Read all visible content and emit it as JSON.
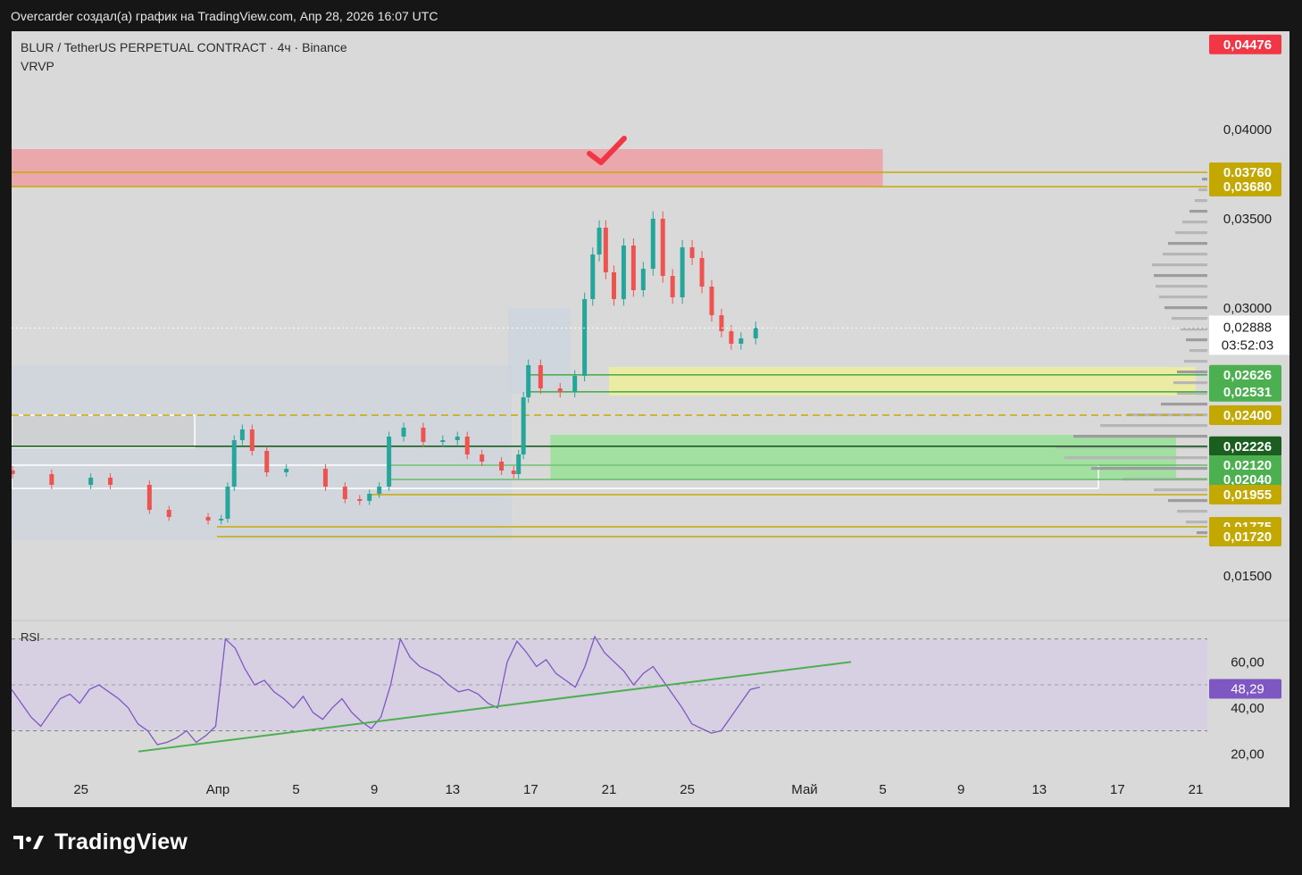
{
  "header": {
    "caption": "Overcarder создал(а) график на TradingView.com, Апр 28, 2026 16:07 UTC"
  },
  "legend": {
    "symbol": "BLUR / TetherUS PERPETUAL CONTRACT · 4ч · Binance",
    "indicator": "VRVP",
    "rsi": "RSI"
  },
  "footer": {
    "brand": "TradingView"
  },
  "colors": {
    "background": "#d9d9d9",
    "up": "#26a69a",
    "down": "#ef5350",
    "yellow_level": "#c8a800",
    "resistance_zone": "#eba5aa",
    "support_zone": "#9ee09e",
    "demand_zone": "#ececa0",
    "rsi_line": "#7e57c2",
    "trend_line": "#4caf50",
    "check_mark": "#f23645"
  },
  "chart_data": [
    {
      "type": "candlestick",
      "title": "BLUR / TetherUS PERPETUAL CONTRACT · 4ч · Binance",
      "timeframe": "4ч",
      "last_price": "0,02888",
      "countdown": "03:52:03",
      "ylim": [
        0.0125,
        0.0455
      ],
      "price_axis_ticks": [
        "0,04000",
        "0,03500",
        "0,03000",
        "0,01500"
      ],
      "price_labels": [
        {
          "text": "0,04476",
          "value": 0.04476,
          "kind": "red"
        },
        {
          "text": "0,03760",
          "value": 0.0376,
          "kind": "yellow"
        },
        {
          "text": "0,03680",
          "value": 0.0368,
          "kind": "yellow"
        },
        {
          "text": "0,02626",
          "value": 0.02626,
          "kind": "green"
        },
        {
          "text": "0,02531",
          "value": 0.02531,
          "kind": "green"
        },
        {
          "text": "0,02400",
          "value": 0.024,
          "kind": "yellow"
        },
        {
          "text": "0,02226",
          "value": 0.02226,
          "kind": "dark"
        },
        {
          "text": "0,02120",
          "value": 0.0212,
          "kind": "green"
        },
        {
          "text": "0,02040",
          "value": 0.0204,
          "kind": "green"
        },
        {
          "text": "0,01955",
          "value": 0.01955,
          "kind": "yellow"
        },
        {
          "text": "0,01775",
          "value": 0.01775,
          "kind": "yellow"
        },
        {
          "text": "0,01720",
          "value": 0.0172,
          "kind": "yellow"
        }
      ],
      "levels": [
        0.0376,
        0.0368,
        0.02626,
        0.02531,
        0.024,
        0.02226,
        0.0212,
        0.0204,
        0.01955,
        0.01775,
        0.0172
      ],
      "zones": [
        {
          "name": "resistance",
          "from": "Mar 21",
          "to": "May 5",
          "low": 0.0368,
          "high": 0.0389
        },
        {
          "name": "demand",
          "from": "Apr 21",
          "to": "May 21",
          "low": 0.0251,
          "high": 0.0267
        },
        {
          "name": "support",
          "from": "Apr 18",
          "to": "May 20",
          "low": 0.0204,
          "high": 0.0229
        }
      ],
      "x_ticks": [
        "25",
        "Апр",
        "5",
        "9",
        "13",
        "17",
        "21",
        "25",
        "Май",
        "5",
        "9",
        "13",
        "17",
        "21"
      ],
      "date_keys": [
        "Mar 25",
        "Apr 1",
        "Apr 5",
        "Apr 9",
        "Apr 13",
        "Apr 17",
        "Apr 21",
        "Apr 25",
        "May 1",
        "May 5",
        "May 9",
        "May 13",
        "May 17",
        "May 21"
      ],
      "close_series": [
        {
          "date": "Mar 21",
          "close": 0.0207
        },
        {
          "date": "Mar 23",
          "close": 0.0201
        },
        {
          "date": "Mar 25",
          "close": 0.0205
        },
        {
          "date": "Mar 26",
          "close": 0.0201
        },
        {
          "date": "Mar 28",
          "close": 0.0187
        },
        {
          "date": "Mar 29",
          "close": 0.0183
        },
        {
          "date": "Mar 31",
          "close": 0.0181
        },
        {
          "date": "Apr 1",
          "close": 0.0182
        },
        {
          "date": "Apr 1",
          "close": 0.02
        },
        {
          "date": "Apr 1",
          "close": 0.0226
        },
        {
          "date": "Apr 2",
          "close": 0.0232
        },
        {
          "date": "Apr 2",
          "close": 0.022
        },
        {
          "date": "Apr 3",
          "close": 0.0208
        },
        {
          "date": "Apr 4",
          "close": 0.021
        },
        {
          "date": "Apr 6",
          "close": 0.02
        },
        {
          "date": "Apr 7",
          "close": 0.0193
        },
        {
          "date": "Apr 8",
          "close": 0.0192
        },
        {
          "date": "Apr 8",
          "close": 0.0196
        },
        {
          "date": "Apr 9",
          "close": 0.02
        },
        {
          "date": "Apr 9",
          "close": 0.0228
        },
        {
          "date": "Apr 10",
          "close": 0.0233
        },
        {
          "date": "Apr 11",
          "close": 0.0225
        },
        {
          "date": "Apr 12",
          "close": 0.0226
        },
        {
          "date": "Apr 13",
          "close": 0.0228
        },
        {
          "date": "Apr 13",
          "close": 0.0218
        },
        {
          "date": "Apr 14",
          "close": 0.0214
        },
        {
          "date": "Apr 15",
          "close": 0.0209
        },
        {
          "date": "Apr 16",
          "close": 0.0207
        },
        {
          "date": "Apr 16",
          "close": 0.0218
        },
        {
          "date": "Apr 16",
          "close": 0.025
        },
        {
          "date": "Apr 16",
          "close": 0.0268
        },
        {
          "date": "Apr 17",
          "close": 0.0255
        },
        {
          "date": "Apr 18",
          "close": 0.0253
        },
        {
          "date": "Apr 19",
          "close": 0.0262
        },
        {
          "date": "Apr 19",
          "close": 0.0305
        },
        {
          "date": "Apr 20",
          "close": 0.033
        },
        {
          "date": "Apr 20",
          "close": 0.0345
        },
        {
          "date": "Apr 20",
          "close": 0.032
        },
        {
          "date": "Apr 21",
          "close": 0.0305
        },
        {
          "date": "Apr 21",
          "close": 0.0335
        },
        {
          "date": "Apr 22",
          "close": 0.031
        },
        {
          "date": "Apr 22",
          "close": 0.0322
        },
        {
          "date": "Apr 23",
          "close": 0.035
        },
        {
          "date": "Apr 23",
          "close": 0.0318
        },
        {
          "date": "Apr 24",
          "close": 0.0306
        },
        {
          "date": "Apr 24",
          "close": 0.0334
        },
        {
          "date": "Apr 25",
          "close": 0.0328
        },
        {
          "date": "Apr 25",
          "close": 0.0312
        },
        {
          "date": "Apr 26",
          "close": 0.0296
        },
        {
          "date": "Apr 26",
          "close": 0.0287
        },
        {
          "date": "Apr 27",
          "close": 0.028
        },
        {
          "date": "Apr 27",
          "close": 0.0283
        },
        {
          "date": "Apr 28",
          "close": 0.0289
        }
      ]
    },
    {
      "type": "line",
      "title": "RSI",
      "ylim": [
        10,
        78
      ],
      "y_ticks": [
        "60,00",
        "40,00",
        "20,00"
      ],
      "bands": [
        70,
        30
      ],
      "current_value": "48,29",
      "x_ticks": [
        "25",
        "Апр",
        "5",
        "9",
        "13",
        "17",
        "21",
        "25",
        "Май",
        "5",
        "9",
        "13",
        "17",
        "21"
      ],
      "values": [
        48,
        42,
        36,
        32,
        38,
        44,
        46,
        42,
        48,
        50,
        47,
        44,
        40,
        33,
        30,
        24,
        25,
        27,
        30,
        25,
        28,
        32,
        70,
        66,
        57,
        50,
        52,
        47,
        44,
        40,
        45,
        38,
        35,
        40,
        44,
        38,
        34,
        31,
        36,
        50,
        70,
        62,
        58,
        56,
        54,
        50,
        47,
        48,
        46,
        42,
        40,
        60,
        69,
        64,
        58,
        61,
        55,
        52,
        49,
        58,
        71,
        64,
        60,
        56,
        50,
        55,
        58,
        52,
        46,
        40,
        33,
        31,
        29,
        30,
        36,
        42,
        48,
        49
      ]
    }
  ]
}
